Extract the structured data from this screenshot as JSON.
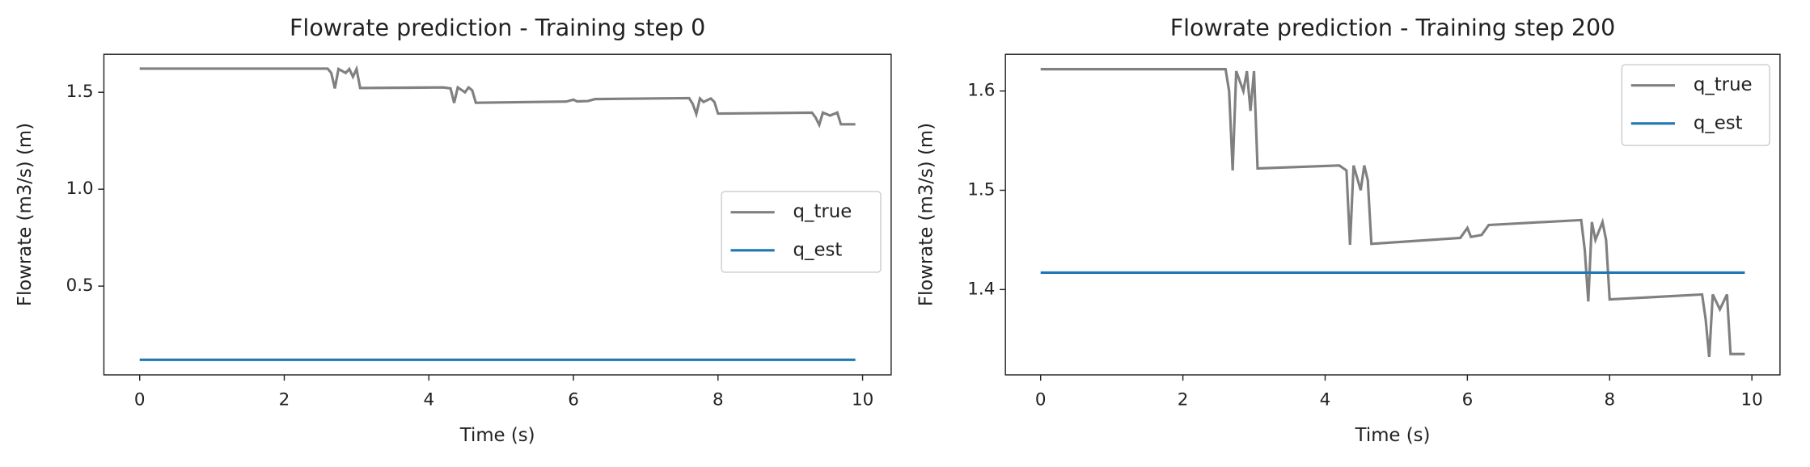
{
  "chart_data": [
    {
      "type": "line",
      "title": "Flowrate prediction - Training step 0",
      "xlabel": "Time (s)",
      "ylabel": "Flowrate (m3/s) (m)",
      "x": [
        0,
        2.6,
        2.65,
        2.7,
        2.75,
        2.85,
        2.9,
        2.95,
        3.0,
        3.05,
        4.2,
        4.3,
        4.35,
        4.4,
        4.5,
        4.55,
        4.6,
        4.65,
        5.9,
        6.0,
        6.05,
        6.2,
        6.3,
        7.6,
        7.65,
        7.7,
        7.75,
        7.8,
        7.9,
        7.95,
        8.0,
        9.3,
        9.35,
        9.4,
        9.45,
        9.55,
        9.65,
        9.7,
        9.9
      ],
      "series": [
        {
          "name": "q_true",
          "color": "#808080",
          "values": [
            1.622,
            1.622,
            1.6,
            1.52,
            1.62,
            1.6,
            1.62,
            1.58,
            1.62,
            1.522,
            1.525,
            1.52,
            1.445,
            1.525,
            1.5,
            1.525,
            1.51,
            1.446,
            1.452,
            1.462,
            1.453,
            1.455,
            1.465,
            1.47,
            1.44,
            1.388,
            1.468,
            1.45,
            1.468,
            1.45,
            1.39,
            1.395,
            1.37,
            1.332,
            1.395,
            1.38,
            1.395,
            1.335,
            1.335
          ]
        },
        {
          "name": "q_est",
          "color": "#1f77b4",
          "values": [
            0.12,
            0.12,
            0.12,
            0.12,
            0.12,
            0.12,
            0.12,
            0.12,
            0.12,
            0.12,
            0.12,
            0.12,
            0.12,
            0.12,
            0.12,
            0.12,
            0.12,
            0.12,
            0.12,
            0.12,
            0.12,
            0.12,
            0.12,
            0.12,
            0.12,
            0.12,
            0.12,
            0.12,
            0.12,
            0.12,
            0.12,
            0.12,
            0.12,
            0.12,
            0.12,
            0.12,
            0.12,
            0.12,
            0.12
          ]
        }
      ],
      "xlim": [
        -0.495,
        10.395
      ],
      "xticks": [
        0,
        2,
        4,
        6,
        8,
        10
      ],
      "ylim": [
        0.042,
        1.696
      ],
      "yticks": [
        0.5,
        {
          "value": 1,
          "label": "1.0"
        },
        1.5
      ],
      "legend": "center right"
    },
    {
      "type": "line",
      "title": "Flowrate prediction - Training step 200",
      "xlabel": "Time (s)",
      "ylabel": "Flowrate (m3/s) (m)",
      "x": [
        0,
        2.6,
        2.65,
        2.7,
        2.75,
        2.85,
        2.9,
        2.95,
        3.0,
        3.05,
        4.2,
        4.3,
        4.35,
        4.4,
        4.5,
        4.55,
        4.6,
        4.65,
        5.9,
        6.0,
        6.05,
        6.2,
        6.3,
        7.6,
        7.65,
        7.7,
        7.75,
        7.8,
        7.9,
        7.95,
        8.0,
        9.3,
        9.35,
        9.4,
        9.45,
        9.55,
        9.65,
        9.7,
        9.9
      ],
      "series": [
        {
          "name": "q_true",
          "color": "#808080",
          "values": [
            1.622,
            1.622,
            1.6,
            1.52,
            1.62,
            1.6,
            1.62,
            1.58,
            1.62,
            1.522,
            1.525,
            1.52,
            1.445,
            1.525,
            1.5,
            1.525,
            1.51,
            1.446,
            1.452,
            1.462,
            1.453,
            1.455,
            1.465,
            1.47,
            1.44,
            1.388,
            1.468,
            1.45,
            1.468,
            1.45,
            1.39,
            1.395,
            1.37,
            1.332,
            1.395,
            1.38,
            1.395,
            1.335,
            1.335
          ]
        },
        {
          "name": "q_est",
          "color": "#1f77b4",
          "values": [
            1.417,
            1.417,
            1.417,
            1.417,
            1.417,
            1.417,
            1.417,
            1.417,
            1.417,
            1.417,
            1.417,
            1.417,
            1.417,
            1.417,
            1.417,
            1.417,
            1.417,
            1.417,
            1.417,
            1.417,
            1.417,
            1.417,
            1.417,
            1.417,
            1.417,
            1.417,
            1.417,
            1.417,
            1.417,
            1.417,
            1.417,
            1.417,
            1.417,
            1.417,
            1.417,
            1.417,
            1.417,
            1.417,
            1.417
          ]
        }
      ],
      "xlim": [
        -0.495,
        10.395
      ],
      "xticks": [
        0,
        2,
        4,
        6,
        8,
        10
      ],
      "ylim": [
        1.314,
        1.637
      ],
      "yticks": [
        1.4,
        1.5,
        1.6
      ],
      "legend": "upper right"
    }
  ]
}
